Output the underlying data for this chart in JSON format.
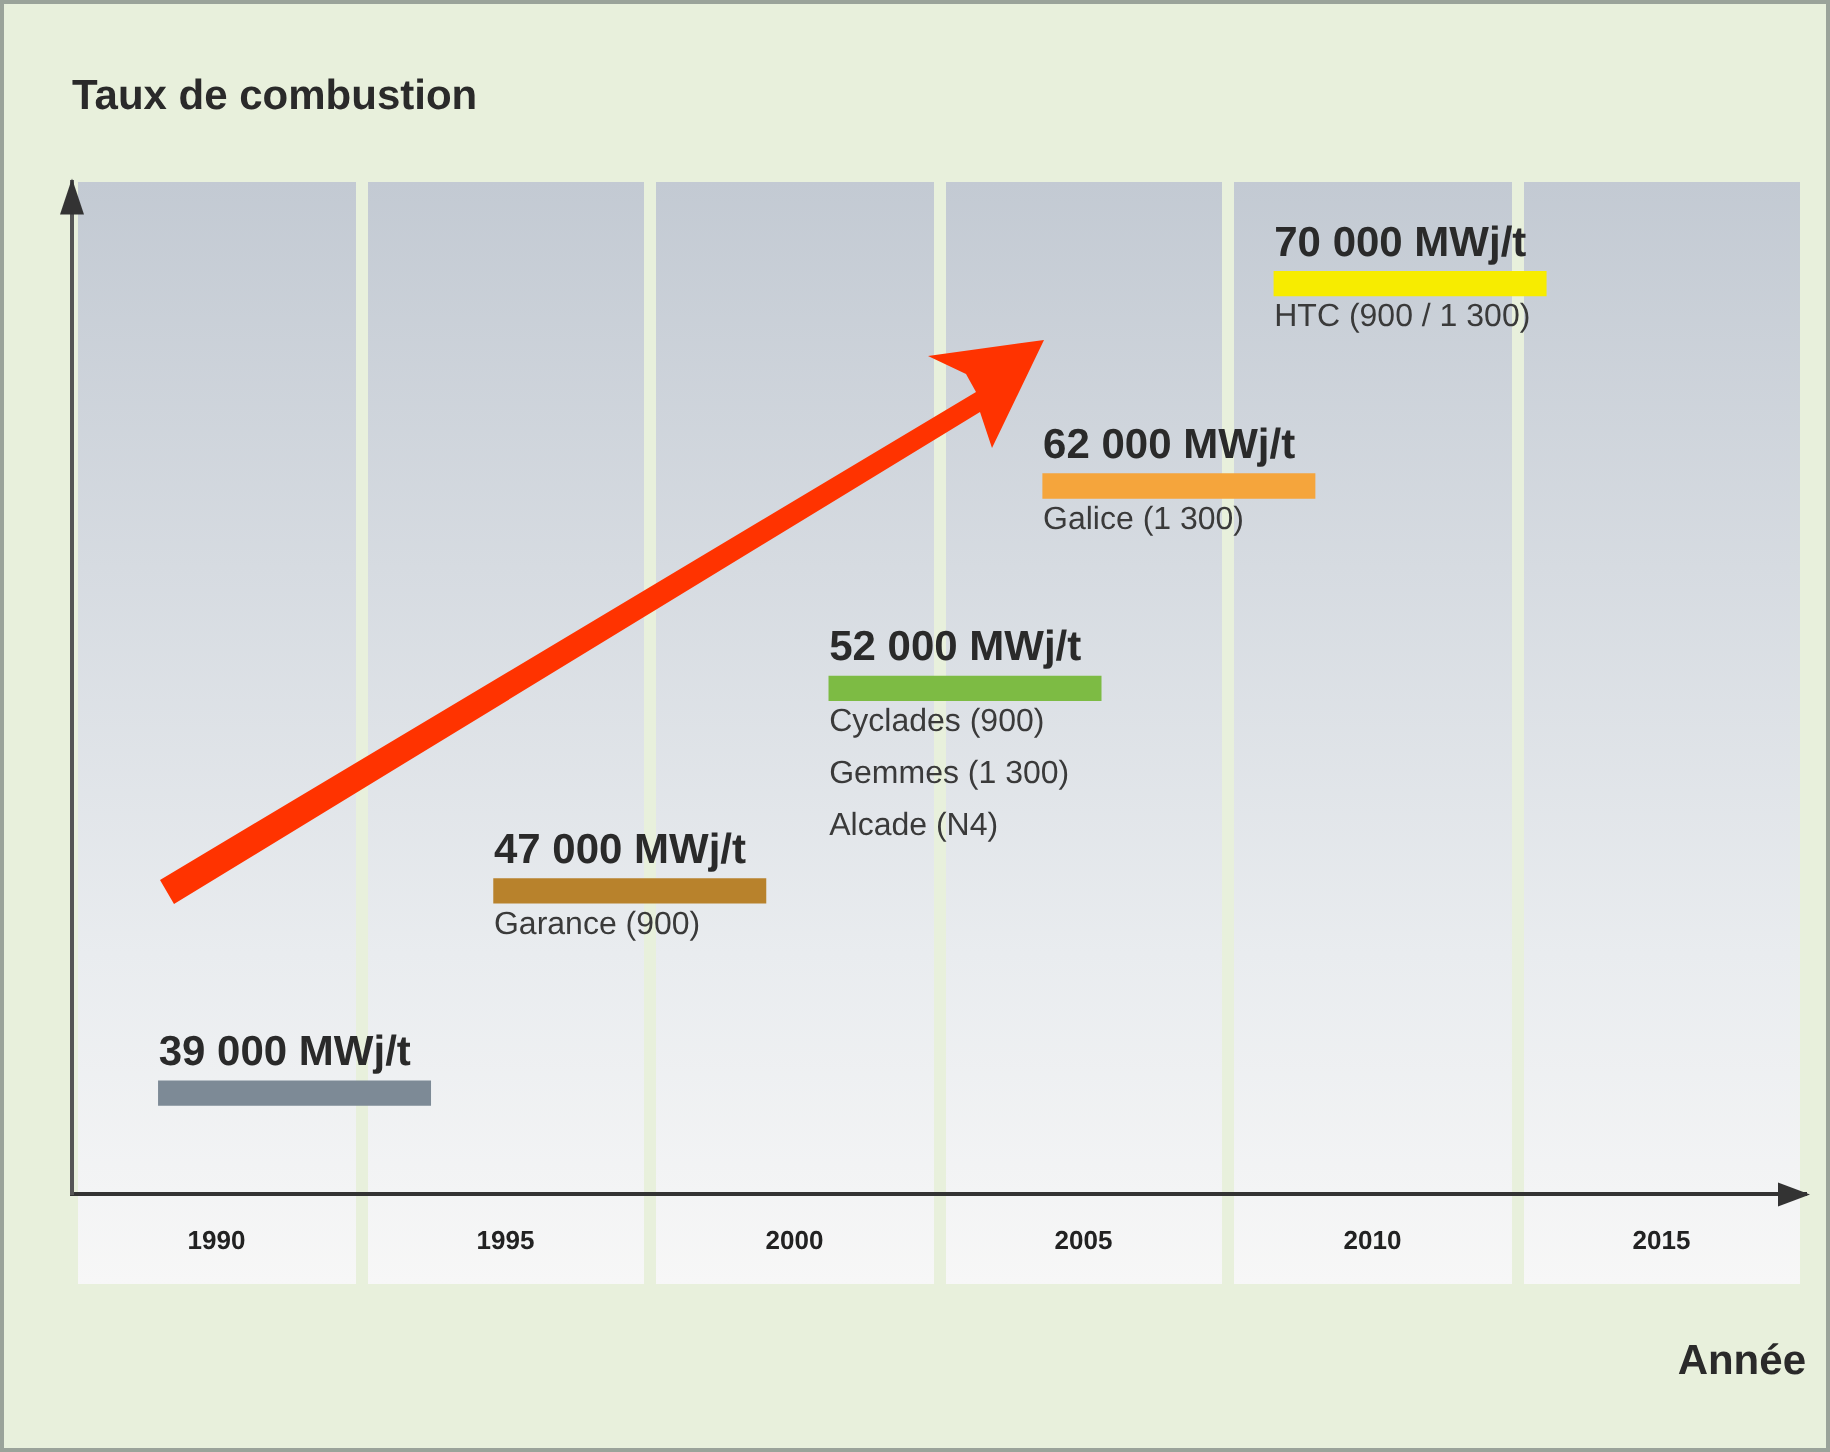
{
  "chart_data": {
    "type": "bar",
    "orientation": "horizontal",
    "title": "Taux de combustion",
    "xlabel": "Année",
    "categories": [
      null,
      null,
      null,
      null,
      null
    ],
    "base": [
      2008.3,
      2004.3,
      2000.6,
      1994.8,
      1989
    ],
    "values": [
      4.7,
      4.7,
      4.7,
      4.7,
      4.7
    ],
    "colors": [
      "#f7ec00",
      "#f5a53c",
      "#7dbb44",
      "#b8822c",
      "#7d8a96"
    ],
    "xlim": [
      1987.5,
      2017.5
    ],
    "xticks": [
      1990,
      1995,
      2000,
      2005,
      2010,
      2015
    ],
    "grid": false,
    "legend": false,
    "annotations": [
      "70 000 MWj/t",
      "HTC (900 / 1 300)",
      "62 000 MWj/t",
      "Galice (1 300)",
      "52 000 MWj/t",
      "Cyclades (900)\nGemmes (1 300)\nAlcade (N4)",
      "47 000 MWj/t",
      "Garance (900)",
      "39 000 MWj/t"
    ]
  }
}
